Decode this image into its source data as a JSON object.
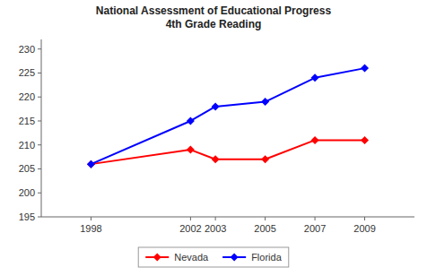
{
  "chart_data": {
    "type": "line",
    "title": "National Assessment of Educational Progress",
    "subtitle": "4th Grade Reading",
    "x": [
      1998,
      2002,
      2003,
      2005,
      2007,
      2009
    ],
    "series": [
      {
        "name": "Nevada",
        "color": "#ff0000",
        "values": [
          206,
          209,
          207,
          207,
          211,
          211
        ]
      },
      {
        "name": "Florida",
        "color": "#0000ff",
        "values": [
          206,
          215,
          218,
          219,
          224,
          226
        ]
      }
    ],
    "xlim": [
      1996,
      2011
    ],
    "xticks": [
      1998,
      2002,
      2003,
      2005,
      2007,
      2009
    ],
    "ylim": [
      195,
      232
    ],
    "yticks": [
      195,
      200,
      205,
      210,
      215,
      220,
      225,
      230
    ],
    "marker": "diamond",
    "grid": false,
    "legend": "bottom"
  }
}
